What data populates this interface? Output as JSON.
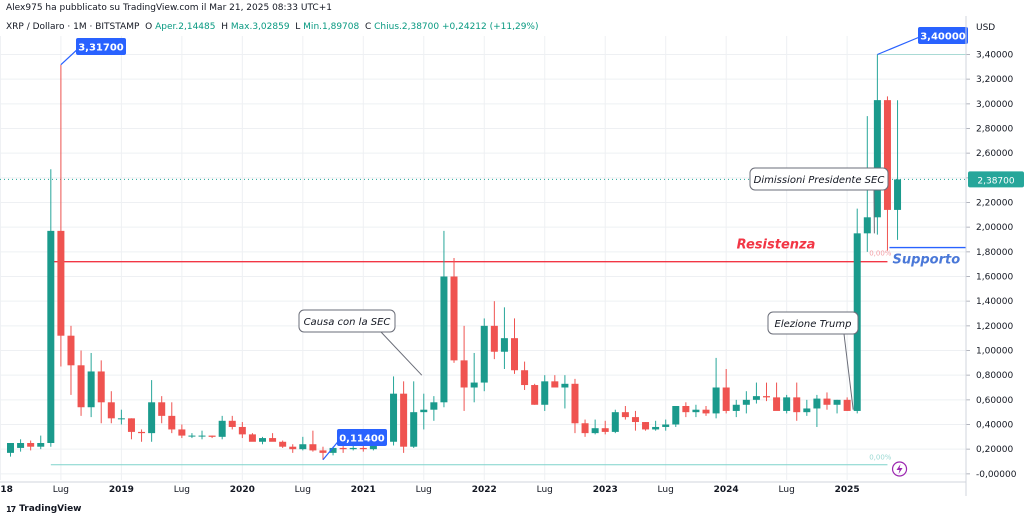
{
  "header": {
    "publisher": "Alex975 ha pubblicato su TradingView.com il Mar 21, 2025 08:33 UTC+1",
    "symbol": "XRP / Dollaro · 1M · BITSTAMP",
    "open_label": "O",
    "open_value": "Aper.2,14485",
    "high_label": "H",
    "high_value": "Max.3,02859",
    "low_label": "L",
    "low_value": "Min.1,89708",
    "close_label": "C",
    "close_value": "Chius.2,38700",
    "change_value": "+0,24212 (+11,29%)"
  },
  "axis": {
    "currency": "USD",
    "current_price": "2,38700"
  },
  "footer": {
    "logo_mark": "17",
    "logo_text": "TradingView"
  },
  "colors": {
    "up": "#26a69a",
    "up_body": "#1a9a8c",
    "down": "#ef5350",
    "resistance": "#f23645",
    "support": "#2962ff",
    "callout_blue": "#2962ff",
    "bottom_line": "#7fd3cc"
  },
  "chart_data": {
    "type": "candlestick",
    "title": "XRP / Dollaro · 1M · BITSTAMP",
    "ylabel": "USD",
    "ylim": [
      -0.05,
      3.55
    ],
    "y_ticks": [
      "-0,00000",
      "0,20000",
      "0,40000",
      "0,60000",
      "0,80000",
      "1,00000",
      "1,20000",
      "1,40000",
      "1,60000",
      "1,80000",
      "2,00000",
      "2,20000",
      "2,40000",
      "2,60000",
      "2,80000",
      "3,00000",
      "3,20000",
      "3,40000"
    ],
    "y_tick_values": [
      0,
      0.2,
      0.4,
      0.6,
      0.8,
      1.0,
      1.2,
      1.4,
      1.6,
      1.8,
      2.0,
      2.2,
      2.4,
      2.6,
      2.8,
      3.0,
      3.2,
      3.4
    ],
    "x_ticks": [
      {
        "label": "ug",
        "index": -7,
        "year": false
      },
      {
        "label": "2018",
        "index": -1,
        "year": true
      },
      {
        "label": "Lug",
        "index": 5,
        "year": false
      },
      {
        "label": "2019",
        "index": 11,
        "year": true
      },
      {
        "label": "Lug",
        "index": 17,
        "year": false
      },
      {
        "label": "2020",
        "index": 23,
        "year": true
      },
      {
        "label": "Lug",
        "index": 29,
        "year": false
      },
      {
        "label": "2021",
        "index": 35,
        "year": true
      },
      {
        "label": "Lug",
        "index": 41,
        "year": false
      },
      {
        "label": "2022",
        "index": 47,
        "year": true
      },
      {
        "label": "Lug",
        "index": 53,
        "year": false
      },
      {
        "label": "2023",
        "index": 59,
        "year": true
      },
      {
        "label": "Lug",
        "index": 65,
        "year": false
      },
      {
        "label": "2024",
        "index": 71,
        "year": true
      },
      {
        "label": "Lug",
        "index": 77,
        "year": false
      },
      {
        "label": "2025",
        "index": 83,
        "year": true
      }
    ],
    "candles": [
      {
        "o": 0.17,
        "h": 0.23,
        "l": 0.14,
        "c": 0.25
      },
      {
        "o": 0.21,
        "h": 0.28,
        "l": 0.18,
        "c": 0.25
      },
      {
        "o": 0.25,
        "h": 0.27,
        "l": 0.19,
        "c": 0.22
      },
      {
        "o": 0.22,
        "h": 0.31,
        "l": 0.2,
        "c": 0.25
      },
      {
        "o": 0.25,
        "h": 2.47,
        "l": 0.22,
        "c": 1.97
      },
      {
        "o": 1.97,
        "h": 3.317,
        "l": 0.87,
        "c": 1.12
      },
      {
        "o": 1.12,
        "h": 1.2,
        "l": 0.64,
        "c": 0.88
      },
      {
        "o": 0.88,
        "h": 1.0,
        "l": 0.47,
        "c": 0.54
      },
      {
        "o": 0.54,
        "h": 0.98,
        "l": 0.46,
        "c": 0.83
      },
      {
        "o": 0.83,
        "h": 0.92,
        "l": 0.41,
        "c": 0.58
      },
      {
        "o": 0.58,
        "h": 0.67,
        "l": 0.41,
        "c": 0.45
      },
      {
        "o": 0.45,
        "h": 0.52,
        "l": 0.4,
        "c": 0.45
      },
      {
        "o": 0.45,
        "h": 0.45,
        "l": 0.28,
        "c": 0.34
      },
      {
        "o": 0.34,
        "h": 0.36,
        "l": 0.26,
        "c": 0.33
      },
      {
        "o": 0.33,
        "h": 0.76,
        "l": 0.26,
        "c": 0.58
      },
      {
        "o": 0.58,
        "h": 0.63,
        "l": 0.41,
        "c": 0.47
      },
      {
        "o": 0.47,
        "h": 0.58,
        "l": 0.33,
        "c": 0.36
      },
      {
        "o": 0.36,
        "h": 0.4,
        "l": 0.29,
        "c": 0.31
      },
      {
        "o": 0.31,
        "h": 0.33,
        "l": 0.29,
        "c": 0.31
      },
      {
        "o": 0.31,
        "h": 0.35,
        "l": 0.28,
        "c": 0.31
      },
      {
        "o": 0.31,
        "h": 0.31,
        "l": 0.29,
        "c": 0.3
      },
      {
        "o": 0.3,
        "h": 0.47,
        "l": 0.28,
        "c": 0.43
      },
      {
        "o": 0.43,
        "h": 0.47,
        "l": 0.36,
        "c": 0.38
      },
      {
        "o": 0.38,
        "h": 0.42,
        "l": 0.29,
        "c": 0.32
      },
      {
        "o": 0.32,
        "h": 0.33,
        "l": 0.27,
        "c": 0.26
      },
      {
        "o": 0.26,
        "h": 0.3,
        "l": 0.24,
        "c": 0.29
      },
      {
        "o": 0.29,
        "h": 0.33,
        "l": 0.27,
        "c": 0.26
      },
      {
        "o": 0.26,
        "h": 0.27,
        "l": 0.21,
        "c": 0.22
      },
      {
        "o": 0.22,
        "h": 0.24,
        "l": 0.17,
        "c": 0.2
      },
      {
        "o": 0.2,
        "h": 0.3,
        "l": 0.19,
        "c": 0.24
      },
      {
        "o": 0.24,
        "h": 0.35,
        "l": 0.18,
        "c": 0.19
      },
      {
        "o": 0.19,
        "h": 0.22,
        "l": 0.114,
        "c": 0.17
      },
      {
        "o": 0.17,
        "h": 0.22,
        "l": 0.15,
        "c": 0.21
      },
      {
        "o": 0.21,
        "h": 0.24,
        "l": 0.17,
        "c": 0.2
      },
      {
        "o": 0.2,
        "h": 0.23,
        "l": 0.19,
        "c": 0.21
      },
      {
        "o": 0.21,
        "h": 0.24,
        "l": 0.18,
        "c": 0.2
      },
      {
        "o": 0.2,
        "h": 0.33,
        "l": 0.19,
        "c": 0.25
      },
      {
        "o": 0.25,
        "h": 0.32,
        "l": 0.23,
        "c": 0.26
      },
      {
        "o": 0.26,
        "h": 0.79,
        "l": 0.23,
        "c": 0.65
      },
      {
        "o": 0.65,
        "h": 0.75,
        "l": 0.17,
        "c": 0.22
      },
      {
        "o": 0.22,
        "h": 0.75,
        "l": 0.21,
        "c": 0.5
      },
      {
        "o": 0.5,
        "h": 0.65,
        "l": 0.36,
        "c": 0.52
      },
      {
        "o": 0.52,
        "h": 0.63,
        "l": 0.43,
        "c": 0.58
      },
      {
        "o": 0.58,
        "h": 1.97,
        "l": 0.54,
        "c": 1.6
      },
      {
        "o": 1.6,
        "h": 1.75,
        "l": 0.9,
        "c": 0.92
      },
      {
        "o": 0.92,
        "h": 1.2,
        "l": 0.51,
        "c": 0.7
      },
      {
        "o": 0.7,
        "h": 0.98,
        "l": 0.58,
        "c": 0.74
      },
      {
        "o": 0.74,
        "h": 1.26,
        "l": 0.67,
        "c": 1.2
      },
      {
        "o": 1.2,
        "h": 1.4,
        "l": 0.93,
        "c": 0.99
      },
      {
        "o": 0.99,
        "h": 1.35,
        "l": 0.85,
        "c": 1.1
      },
      {
        "o": 1.1,
        "h": 1.26,
        "l": 0.81,
        "c": 0.84
      },
      {
        "o": 0.84,
        "h": 0.91,
        "l": 0.68,
        "c": 0.72
      },
      {
        "o": 0.72,
        "h": 0.73,
        "l": 0.56,
        "c": 0.56
      },
      {
        "o": 0.56,
        "h": 0.8,
        "l": 0.51,
        "c": 0.75
      },
      {
        "o": 0.75,
        "h": 0.8,
        "l": 0.7,
        "c": 0.7
      },
      {
        "o": 0.7,
        "h": 0.8,
        "l": 0.53,
        "c": 0.73
      },
      {
        "o": 0.73,
        "h": 0.77,
        "l": 0.33,
        "c": 0.41
      },
      {
        "o": 0.41,
        "h": 0.44,
        "l": 0.3,
        "c": 0.33
      },
      {
        "o": 0.33,
        "h": 0.44,
        "l": 0.32,
        "c": 0.37
      },
      {
        "o": 0.37,
        "h": 0.43,
        "l": 0.32,
        "c": 0.34
      },
      {
        "o": 0.34,
        "h": 0.52,
        "l": 0.33,
        "c": 0.5
      },
      {
        "o": 0.5,
        "h": 0.55,
        "l": 0.44,
        "c": 0.46
      },
      {
        "o": 0.46,
        "h": 0.51,
        "l": 0.35,
        "c": 0.42
      },
      {
        "o": 0.42,
        "h": 0.42,
        "l": 0.35,
        "c": 0.36
      },
      {
        "o": 0.36,
        "h": 0.43,
        "l": 0.35,
        "c": 0.38
      },
      {
        "o": 0.38,
        "h": 0.44,
        "l": 0.35,
        "c": 0.4
      },
      {
        "o": 0.4,
        "h": 0.52,
        "l": 0.38,
        "c": 0.55
      },
      {
        "o": 0.55,
        "h": 0.58,
        "l": 0.46,
        "c": 0.5
      },
      {
        "o": 0.5,
        "h": 0.56,
        "l": 0.46,
        "c": 0.52
      },
      {
        "o": 0.52,
        "h": 0.55,
        "l": 0.47,
        "c": 0.49
      },
      {
        "o": 0.49,
        "h": 0.94,
        "l": 0.45,
        "c": 0.7
      },
      {
        "o": 0.7,
        "h": 0.85,
        "l": 0.49,
        "c": 0.51
      },
      {
        "o": 0.51,
        "h": 0.6,
        "l": 0.46,
        "c": 0.56
      },
      {
        "o": 0.56,
        "h": 0.67,
        "l": 0.49,
        "c": 0.6
      },
      {
        "o": 0.6,
        "h": 0.74,
        "l": 0.57,
        "c": 0.63
      },
      {
        "o": 0.63,
        "h": 0.74,
        "l": 0.59,
        "c": 0.62
      },
      {
        "o": 0.62,
        "h": 0.74,
        "l": 0.53,
        "c": 0.51
      },
      {
        "o": 0.51,
        "h": 0.64,
        "l": 0.49,
        "c": 0.62
      },
      {
        "o": 0.62,
        "h": 0.74,
        "l": 0.43,
        "c": 0.5
      },
      {
        "o": 0.5,
        "h": 0.6,
        "l": 0.47,
        "c": 0.53
      },
      {
        "o": 0.53,
        "h": 0.64,
        "l": 0.38,
        "c": 0.61
      },
      {
        "o": 0.61,
        "h": 0.66,
        "l": 0.52,
        "c": 0.56
      },
      {
        "o": 0.56,
        "h": 0.6,
        "l": 0.49,
        "c": 0.6
      },
      {
        "o": 0.6,
        "h": 0.62,
        "l": 0.51,
        "c": 0.51
      },
      {
        "o": 0.51,
        "h": 2.15,
        "l": 0.49,
        "c": 1.95
      },
      {
        "o": 1.95,
        "h": 2.9,
        "l": 1.8,
        "c": 2.08
      },
      {
        "o": 2.08,
        "h": 3.4,
        "l": 1.94,
        "c": 3.03
      },
      {
        "o": 3.03,
        "h": 3.06,
        "l": 1.81,
        "c": 2.14
      },
      {
        "o": 2.14,
        "h": 3.02859,
        "l": 1.89708,
        "c": 2.387
      }
    ],
    "levels": [
      {
        "name": "Resistenza",
        "value": 1.72,
        "color": "#f23645"
      },
      {
        "name": "Supporto",
        "value": 1.835,
        "color": "#2962ff"
      }
    ],
    "annotations": [
      {
        "text": "3,31700",
        "value": 3.317,
        "index": 5
      },
      {
        "text": "0,11400",
        "value": 0.114,
        "index": 31
      },
      {
        "text": "3,40000",
        "value": 3.4,
        "index": 86
      },
      {
        "text": "Causa con la SEC",
        "index": 41
      },
      {
        "text": "Elezione Trump",
        "index": 84
      },
      {
        "text": "Dimissioni Presidente SEC",
        "index": 86
      }
    ],
    "pct_labels": [
      "0,00%",
      "0,00%"
    ],
    "grid": true,
    "legend": "none"
  }
}
